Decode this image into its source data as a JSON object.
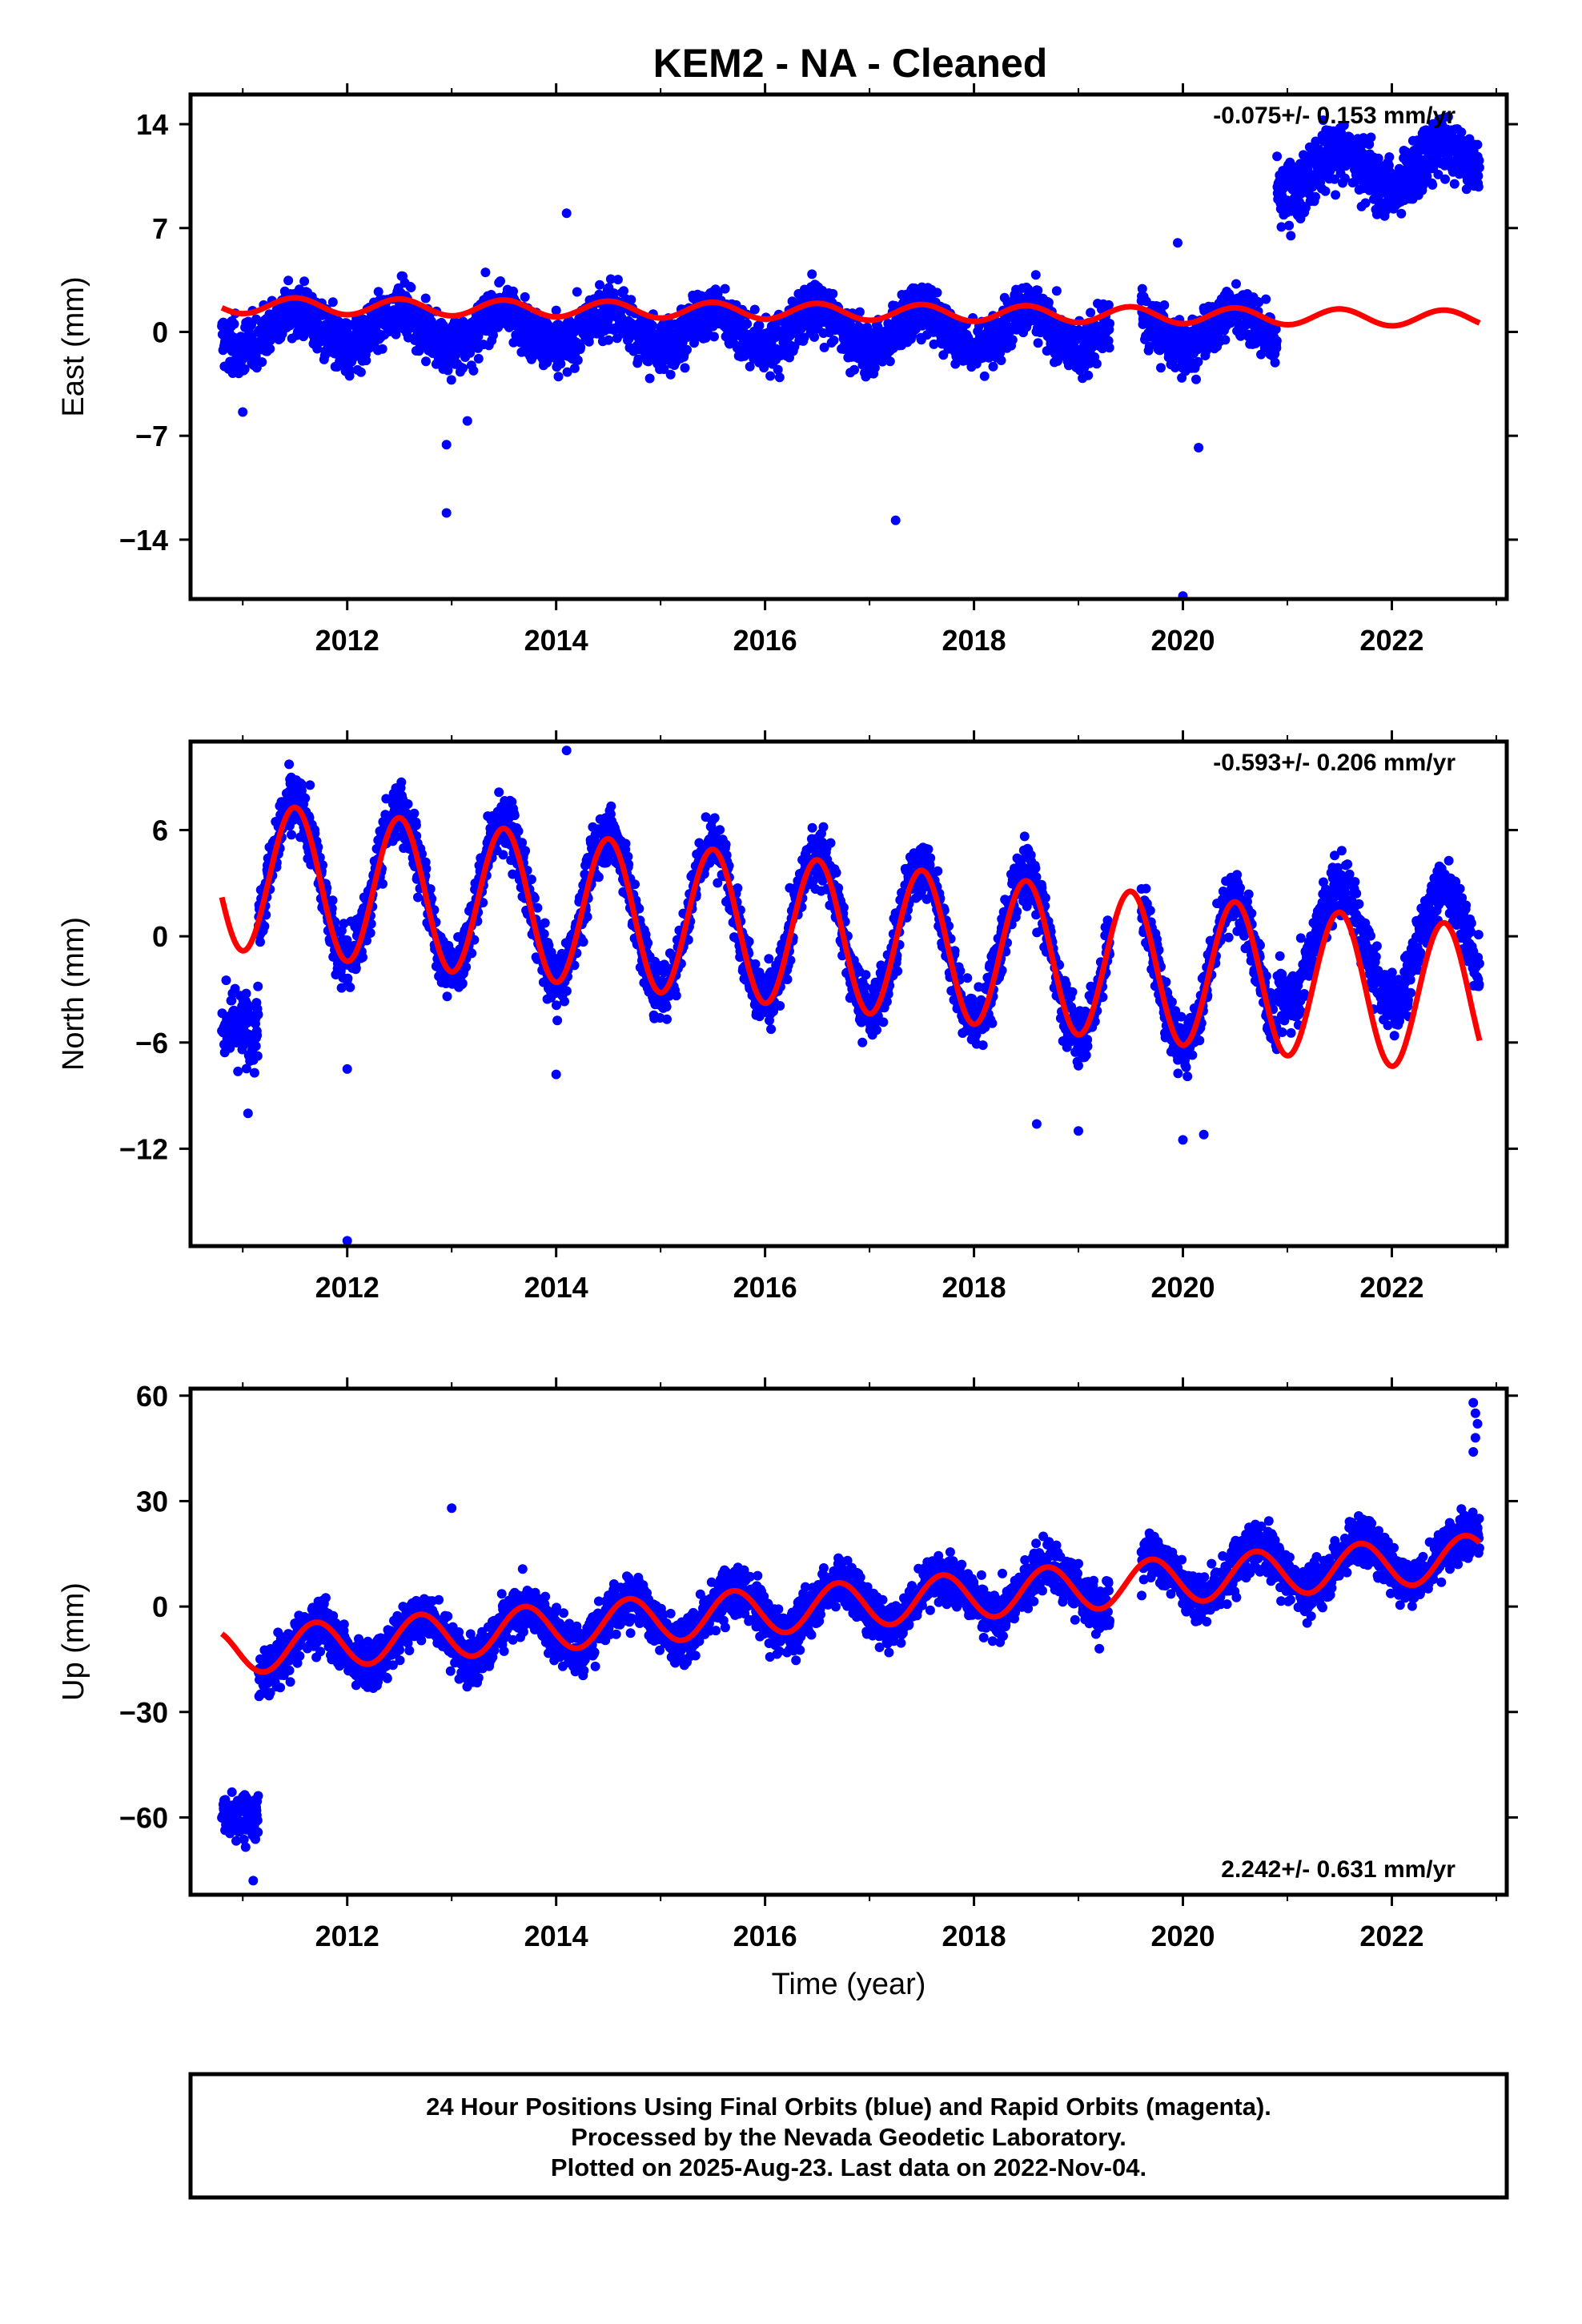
{
  "chart_data": {
    "title": "KEM2  - NA - Cleaned",
    "xlabel": "Time (year)",
    "x_ticks": [
      "2012",
      "2014",
      "2016",
      "2018",
      "2020",
      "2022"
    ],
    "colors": {
      "final_orbits": "#0000ff",
      "model": "#ff0000"
    },
    "panels": [
      {
        "type": "scatter",
        "ylabel": "East (mm)",
        "ylim": [
          -18,
          16
        ],
        "xlim": [
          2010.5,
          2023.1
        ],
        "y_ticks": [
          14,
          7,
          0,
          -7,
          -14
        ],
        "y_tick_labels": [
          "14",
          "7",
          "0",
          "−7",
          "−14"
        ],
        "rate_text": "-0.075+/- 0.153 mm/yr",
        "rate_position": "top-right",
        "data_range": [
          2010.8,
          2022.84
        ],
        "trend": [
          {
            "t_start": 2010.8,
            "t_end": 2020.9,
            "offset_at_start": 0.2,
            "rate": 0.0,
            "amp": 1.3,
            "spread": 1.3
          },
          {
            "t_start": 2020.9,
            "t_end": 2022.84,
            "offset_at_start": 10.5,
            "rate": 0.5,
            "amp": 1.3,
            "spread": 1.5
          }
        ],
        "model": {
          "base": 1.8,
          "rate": -0.075,
          "amp": 0.55,
          "phase_peak": 0.5
        },
        "outliers": [
          [
            2012.95,
            -12.2
          ],
          [
            2012.95,
            -7.6
          ],
          [
            2013.15,
            -6.0
          ],
          [
            2014.1,
            8.0
          ],
          [
            2017.25,
            -12.7
          ],
          [
            2019.95,
            6.0
          ],
          [
            2020.0,
            -17.8
          ],
          [
            2020.15,
            -7.8
          ],
          [
            2011.0,
            -5.4
          ]
        ],
        "gaps": [
          [
            2019.3,
            2019.6
          ]
        ]
      },
      {
        "type": "scatter",
        "ylabel": "North (mm)",
        "ylim": [
          -17.5,
          11
        ],
        "xlim": [
          2010.5,
          2023.1
        ],
        "y_ticks": [
          6,
          0,
          -6,
          -12
        ],
        "y_tick_labels": [
          "6",
          "0",
          "−6",
          "−12"
        ],
        "rate_text": "-0.593+/- 0.206 mm/yr",
        "rate_position": "top-right",
        "data_range": [
          2010.8,
          2022.84
        ],
        "trend": [
          {
            "t_start": 2010.8,
            "t_end": 2011.15,
            "offset_at_start": -5.0,
            "rate": 0.0,
            "amp": 0.0,
            "spread": 1.6
          },
          {
            "t_start": 2011.15,
            "t_end": 2020.9,
            "offset_at_start": 3.5,
            "rate": -0.6,
            "amp": 4.3,
            "spread": 1.2
          },
          {
            "t_start": 2020.9,
            "t_end": 2022.84,
            "offset_at_start": -0.5,
            "rate": 0.0,
            "amp": 3.3,
            "spread": 1.2
          }
        ],
        "model": {
          "base": 3.5,
          "rate": -0.593,
          "amp": 4.2,
          "phase_peak": 0.5
        },
        "outliers": [
          [
            2011.05,
            -10.0
          ],
          [
            2012.0,
            -7.5
          ],
          [
            2012.0,
            -17.2
          ],
          [
            2014.1,
            10.5
          ],
          [
            2018.6,
            -10.6
          ],
          [
            2019.0,
            -11.0
          ],
          [
            2020.0,
            -11.5
          ],
          [
            2020.2,
            -11.2
          ],
          [
            2014.0,
            -7.8
          ]
        ],
        "gaps": [
          [
            2019.3,
            2019.6
          ]
        ]
      },
      {
        "type": "scatter",
        "ylabel": "Up (mm)",
        "ylim": [
          -82,
          62
        ],
        "xlim": [
          2010.5,
          2023.1
        ],
        "y_ticks": [
          60,
          30,
          0,
          -30,
          -60
        ],
        "y_tick_labels": [
          "60",
          "30",
          "0",
          "−30",
          "−60"
        ],
        "rate_text": "2.242+/- 0.631 mm/yr",
        "rate_position": "bottom-right",
        "data_range": [
          2010.8,
          2022.84
        ],
        "trend": [
          {
            "t_start": 2010.8,
            "t_end": 2011.15,
            "offset_at_start": -60.0,
            "rate": 0.0,
            "amp": 0.0,
            "spread": 4.5
          },
          {
            "t_start": 2011.15,
            "t_end": 2022.84,
            "offset_at_start": -13.0,
            "rate": 2.4,
            "amp": 6.5,
            "spread": 5.0
          }
        ],
        "model": {
          "base": -13.0,
          "rate": 2.242,
          "amp": 6.5,
          "phase_peak": 0.7
        },
        "outliers": [
          [
            2013.0,
            28.0
          ],
          [
            2022.78,
            58.0
          ],
          [
            2022.8,
            55.0
          ],
          [
            2022.82,
            52.0
          ],
          [
            2022.8,
            48.0
          ],
          [
            2022.78,
            44.0
          ],
          [
            2011.1,
            -78.0
          ],
          [
            2019.2,
            -12.0
          ]
        ],
        "gaps": [
          [
            2019.3,
            2019.6
          ]
        ]
      }
    ]
  },
  "footer": {
    "line1": "24 Hour Positions Using Final Orbits (blue) and Rapid Orbits (magenta).",
    "line2": "Processed by the Nevada Geodetic Laboratory.",
    "line3": "Plotted on 2025-Aug-23. Last data on 2022-Nov-04."
  }
}
